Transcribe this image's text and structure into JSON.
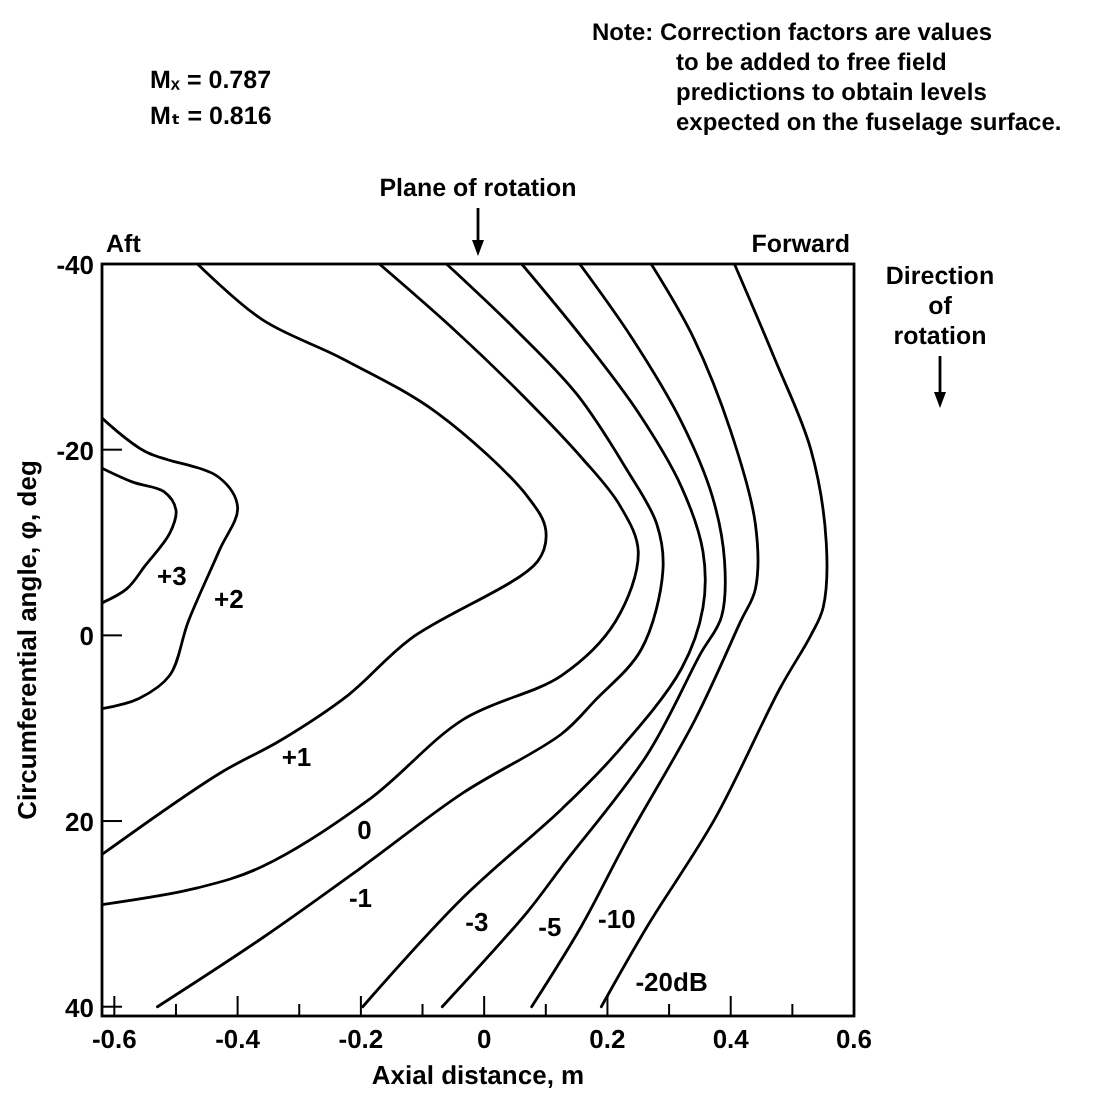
{
  "chart_data": {
    "type": "line",
    "xlabel": "Axial distance, m",
    "ylabel": "Circumferential angle, φ, deg",
    "xlim": [
      -0.62,
      0.6
    ],
    "ylim": [
      41,
      -40
    ],
    "xticks": [
      -0.6,
      {
        "value": -0.5,
        "label": null
      },
      -0.4,
      {
        "value": -0.3,
        "label": null
      },
      -0.2,
      {
        "value": -0.1,
        "label": null
      },
      0,
      {
        "value": 0.1,
        "label": null
      },
      0.2,
      {
        "value": 0.3,
        "label": null
      },
      0.4,
      {
        "value": 0.5,
        "label": null
      },
      0.6
    ],
    "yticks": [
      -40,
      -20,
      0,
      20,
      40
    ],
    "series": [
      {
        "name": "+3",
        "color": "#000000",
        "x": [
          -0.62,
          -0.57,
          -0.52,
          -0.5,
          -0.51,
          -0.55,
          -0.58,
          -0.62
        ],
        "values": [
          -18,
          -16.5,
          -15.5,
          -13.5,
          -11,
          -7.5,
          -5,
          -3.5
        ]
      },
      {
        "name": "+2",
        "color": "#000000",
        "x": [
          -0.62,
          -0.55,
          -0.43,
          -0.4,
          -0.43,
          -0.48,
          -0.51,
          -0.56,
          -0.62
        ],
        "values": [
          -23.4,
          -19.8,
          -17,
          -13.8,
          -9.1,
          -1.5,
          4.3,
          6.8,
          7.9
        ]
      },
      {
        "name": "+1",
        "color": "#000000",
        "x": [
          -0.465,
          -0.36,
          -0.23,
          -0.077,
          0.071,
          0.1,
          0.087,
          -0.12,
          -0.22,
          -0.33,
          -0.43,
          -0.62
        ],
        "values": [
          -40,
          -34,
          -29.8,
          -24,
          -14.9,
          -11.3,
          -8,
          0.4,
          6.4,
          11.3,
          14.9,
          23.6
        ]
      },
      {
        "name": "0",
        "color": "#000000",
        "x": [
          -0.17,
          -0.05,
          0.06,
          0.16,
          0.22,
          0.25,
          0.213,
          0.126,
          -0.035,
          -0.187,
          -0.36,
          -0.465,
          -0.62
        ],
        "values": [
          -40,
          -33,
          -26,
          -19,
          -14,
          -9,
          -1.5,
          4.3,
          9.1,
          17.7,
          24.9,
          27.2,
          29
        ]
      },
      {
        "name": "-1",
        "color": "#000000",
        "x": [
          -0.061,
          0.05,
          0.15,
          0.23,
          0.28,
          0.29,
          0.255,
          0.18,
          0.126,
          -0.035,
          -0.197,
          -0.36,
          -0.53
        ],
        "values": [
          -40,
          -33,
          -26,
          -18,
          -12,
          -7,
          1.5,
          7,
          10.6,
          17,
          24.9,
          32.6,
          40
        ]
      },
      {
        "name": "-3",
        "color": "#000000",
        "x": [
          0.061,
          0.16,
          0.25,
          0.32,
          0.355,
          0.355,
          0.32,
          0.213,
          0.126,
          -0.035,
          -0.197
        ],
        "values": [
          -40,
          -32,
          -24,
          -16,
          -9,
          -3,
          3.6,
          12.8,
          18.7,
          28.3,
          40
        ]
      },
      {
        "name": "-5",
        "color": "#000000",
        "x": [
          0.155,
          0.24,
          0.32,
          0.37,
          0.39,
          0.385,
          0.35,
          0.265,
          0.126,
          0.07,
          -0.068
        ],
        "values": [
          -40,
          -32,
          -23,
          -15,
          -8,
          -2,
          2.1,
          12.8,
          24.9,
          29.8,
          40
        ]
      },
      {
        "name": "-10",
        "color": "#000000",
        "x": [
          0.271,
          0.34,
          0.4,
          0.44,
          0.44,
          0.416,
          0.342,
          0.232,
          0.158,
          0.077
        ],
        "values": [
          -40,
          -32,
          -22,
          -12,
          -5,
          -1.5,
          9.1,
          22,
          31.3,
          40
        ]
      },
      {
        "name": "-20dB",
        "color": "#000000",
        "x": [
          0.406,
          0.47,
          0.53,
          0.555,
          0.55,
          0.53,
          0.48,
          0.374,
          0.265,
          0.19
        ],
        "values": [
          -40,
          -30,
          -20,
          -10,
          -3,
          0,
          5.7,
          19.8,
          31.3,
          40
        ]
      }
    ],
    "annotations": [
      "Mₓ = 0.787",
      "Mₜ = 0.816",
      "Note:  Correction factors are values\nto be added to free field\npredictions to obtain levels\nexpected on the fuselage surface.",
      "Aft",
      "Forward",
      "Direction\nof\nrotation",
      "Plane of rotation"
    ]
  }
}
